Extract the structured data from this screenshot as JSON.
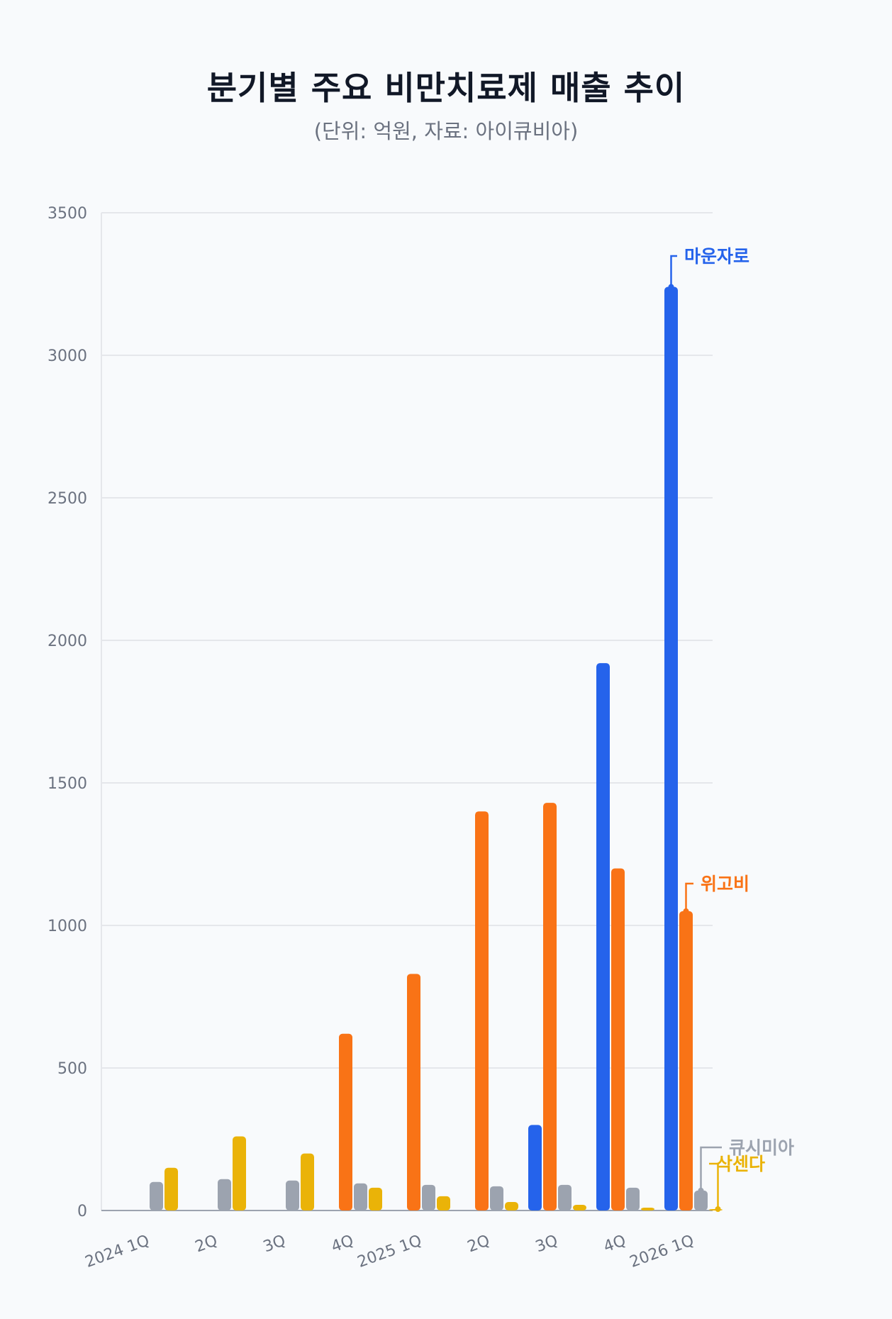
{
  "header": {
    "title": "분기별 주요 비만치료제 매출 추이",
    "subtitle": "(단위: 억원, 자료: 아이큐비아)"
  },
  "chart_data": {
    "type": "bar",
    "title": "분기별 주요 비만치료제 매출 추이",
    "subtitle": "(단위: 억원, 자료: 아이큐비아)",
    "categories": [
      "2024 1Q",
      "2Q",
      "3Q",
      "4Q",
      "2025 1Q",
      "2Q",
      "3Q",
      "4Q",
      "2026 1Q"
    ],
    "ylim": [
      0,
      3500
    ],
    "yticks": [
      0,
      500,
      1000,
      1500,
      2000,
      2500,
      3000,
      3500
    ],
    "grid": true,
    "legend": "inline labels at the right end of each series",
    "series": [
      {
        "name": "마운자로",
        "color": "#2563eb",
        "values": [
          null,
          null,
          null,
          null,
          null,
          null,
          300,
          1920,
          3240
        ]
      },
      {
        "name": "위고비",
        "color": "#f97316",
        "values": [
          null,
          null,
          null,
          620,
          830,
          1400,
          1430,
          1200,
          1050
        ]
      },
      {
        "name": "큐시미아",
        "color": "#9ca3af",
        "values": [
          100,
          110,
          105,
          95,
          90,
          85,
          90,
          80,
          70
        ]
      },
      {
        "name": "삭센다",
        "color": "#eab308",
        "values": [
          150,
          260,
          200,
          80,
          50,
          30,
          20,
          10,
          5
        ]
      }
    ]
  }
}
